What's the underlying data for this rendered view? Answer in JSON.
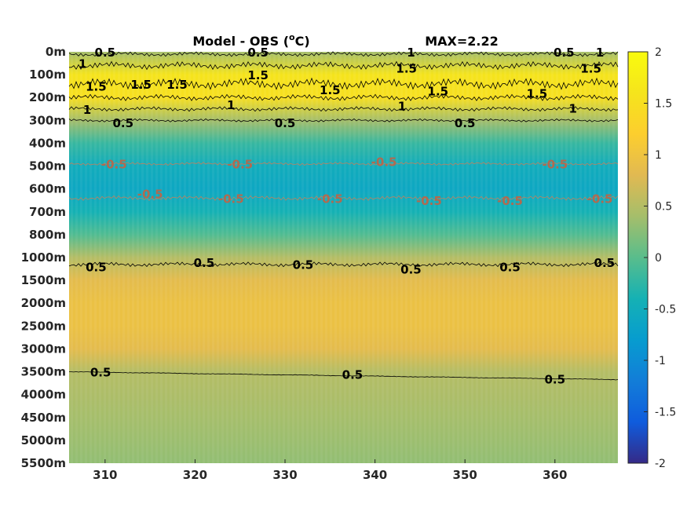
{
  "chart_data": {
    "type": "heatmap",
    "title": "Model - OBS (°C)",
    "title_main": "Model - OBS (",
    "title_sup": "o",
    "title_unit": "C)",
    "annotation": "MAX=2.22",
    "x_ticks": [
      310,
      320,
      330,
      340,
      350,
      360
    ],
    "x_ticklabels": [
      "310",
      "320",
      "330",
      "340",
      "350",
      "360"
    ],
    "xlim": [
      306,
      367
    ],
    "y_ticklabels": [
      "0m",
      "100m",
      "200m",
      "300m",
      "400m",
      "500m",
      "600m",
      "700m",
      "800m",
      "1000m",
      "1500m",
      "2000m",
      "2500m",
      "3000m",
      "3500m",
      "4000m",
      "4500m",
      "5000m",
      "5500m"
    ],
    "y_direction": "reversed",
    "colorbar": {
      "clim": [
        -2,
        2
      ],
      "ticks": [
        2,
        1.5,
        1,
        0.5,
        0,
        -0.5,
        -1,
        -1.5,
        -2
      ],
      "ticklabels": [
        "2",
        "1.5",
        "1",
        "0.5",
        "0",
        "-0.5",
        "-1",
        "-1.5",
        "-2"
      ],
      "colormap": "parula"
    },
    "depth_profile": {
      "depth_labels": [
        "0m",
        "100m",
        "200m",
        "300m",
        "400m",
        "500m",
        "600m",
        "700m",
        "800m",
        "1000m",
        "1500m",
        "2000m",
        "2500m",
        "3000m",
        "3500m",
        "4000m",
        "4500m",
        "5000m",
        "5500m"
      ],
      "values": [
        0.4,
        1.6,
        1.5,
        0.4,
        -0.2,
        -0.5,
        -0.6,
        -0.4,
        -0.05,
        0.5,
        0.85,
        0.95,
        0.95,
        0.85,
        0.5,
        0.45,
        0.4,
        0.35,
        0.3
      ]
    },
    "contour_labels": [
      {
        "text": "0.5",
        "x": 310,
        "depth": "0m",
        "color": "#000000"
      },
      {
        "text": "1",
        "x": 307.5,
        "depth": "50m",
        "color": "#000000"
      },
      {
        "text": "0.5",
        "x": 327,
        "depth": "0m",
        "color": "#000000"
      },
      {
        "text": "1",
        "x": 344,
        "depth": "0m",
        "color": "#000000"
      },
      {
        "text": "0.5",
        "x": 361,
        "depth": "0m",
        "color": "#000000"
      },
      {
        "text": "1",
        "x": 365,
        "depth": "0m",
        "color": "#000000"
      },
      {
        "text": "1.5",
        "x": 309,
        "depth": "150m",
        "color": "#000000"
      },
      {
        "text": "1.5",
        "x": 314,
        "depth": "140m",
        "color": "#000000"
      },
      {
        "text": "1.5",
        "x": 318,
        "depth": "140m",
        "color": "#000000"
      },
      {
        "text": "1.5",
        "x": 327,
        "depth": "100m",
        "color": "#000000"
      },
      {
        "text": "1.5",
        "x": 343.5,
        "depth": "70m",
        "color": "#000000"
      },
      {
        "text": "1.5",
        "x": 364,
        "depth": "70m",
        "color": "#000000"
      },
      {
        "text": "1.5",
        "x": 335,
        "depth": "165m",
        "color": "#000000"
      },
      {
        "text": "1.5",
        "x": 347,
        "depth": "170m",
        "color": "#000000"
      },
      {
        "text": "1.5",
        "x": 358,
        "depth": "180m",
        "color": "#000000"
      },
      {
        "text": "1",
        "x": 308,
        "depth": "250m",
        "color": "#000000"
      },
      {
        "text": "1",
        "x": 324,
        "depth": "230m",
        "color": "#000000"
      },
      {
        "text": "1",
        "x": 343,
        "depth": "235m",
        "color": "#000000"
      },
      {
        "text": "1",
        "x": 362,
        "depth": "245m",
        "color": "#000000"
      },
      {
        "text": "0.5",
        "x": 312,
        "depth": "310m",
        "color": "#000000"
      },
      {
        "text": "0.5",
        "x": 330,
        "depth": "310m",
        "color": "#000000"
      },
      {
        "text": "0.5",
        "x": 350,
        "depth": "310m",
        "color": "#000000"
      },
      {
        "text": "-0.5",
        "x": 311,
        "depth": "490m",
        "color": "#b06a50"
      },
      {
        "text": "-0.5",
        "x": 325,
        "depth": "490m",
        "color": "#b06a50"
      },
      {
        "text": "-0.5",
        "x": 341,
        "depth": "480m",
        "color": "#b06a50"
      },
      {
        "text": "-0.5",
        "x": 360,
        "depth": "490m",
        "color": "#b06a50"
      },
      {
        "text": "-0.5",
        "x": 315,
        "depth": "620m",
        "color": "#b06a50"
      },
      {
        "text": "-0.5",
        "x": 324,
        "depth": "640m",
        "color": "#b06a50"
      },
      {
        "text": "-0.5",
        "x": 335,
        "depth": "640m",
        "color": "#b06a50"
      },
      {
        "text": "-0.5",
        "x": 346,
        "depth": "650m",
        "color": "#b06a50"
      },
      {
        "text": "-0.5",
        "x": 355,
        "depth": "650m",
        "color": "#b06a50"
      },
      {
        "text": "-0.5",
        "x": 365,
        "depth": "640m",
        "color": "#b06a50"
      },
      {
        "text": "0.5",
        "x": 309,
        "depth": "1200m",
        "color": "#000000"
      },
      {
        "text": "0.5",
        "x": 321,
        "depth": "1100m",
        "color": "#000000"
      },
      {
        "text": "0.5",
        "x": 332,
        "depth": "1150m",
        "color": "#000000"
      },
      {
        "text": "0.5",
        "x": 344,
        "depth": "1250m",
        "color": "#000000"
      },
      {
        "text": "0.5",
        "x": 355,
        "depth": "1200m",
        "color": "#000000"
      },
      {
        "text": "0.5",
        "x": 365.5,
        "depth": "1100m",
        "color": "#000000"
      },
      {
        "text": "0.5",
        "x": 309.5,
        "depth": "3500m",
        "color": "#000000"
      },
      {
        "text": "0.5",
        "x": 337.5,
        "depth": "3550m",
        "color": "#000000"
      },
      {
        "text": "0.5",
        "x": 360,
        "depth": "3650m",
        "color": "#000000"
      }
    ]
  }
}
